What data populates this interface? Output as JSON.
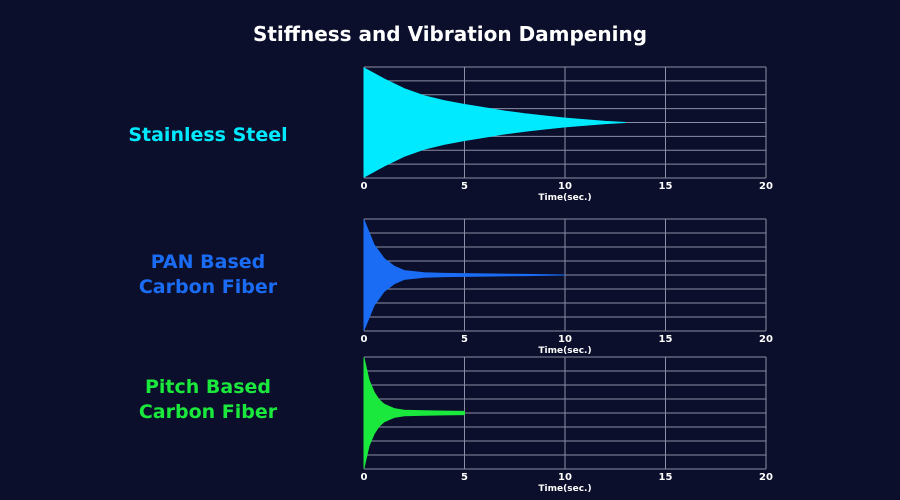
{
  "title": "Stiffness and Vibration Dampening",
  "colors": {
    "background": "#0c0f2b",
    "grid": "#8a8fa6",
    "tick_text": "#ffffff"
  },
  "chart_data": [
    {
      "type": "area",
      "material_lines": [
        "Stainless Steel"
      ],
      "color": "#00eaff",
      "xlabel": "Time(sec.)",
      "xlim": [
        0,
        20
      ],
      "xticks": [
        "0",
        "5",
        "10",
        "15",
        "20"
      ],
      "envelope": {
        "x": [
          0,
          1,
          2,
          3,
          4,
          5,
          6,
          7,
          8,
          9,
          10,
          11,
          12,
          13
        ],
        "amplitude": [
          1.0,
          0.8,
          0.62,
          0.49,
          0.4,
          0.33,
          0.27,
          0.21,
          0.16,
          0.12,
          0.08,
          0.05,
          0.02,
          0.0
        ]
      }
    },
    {
      "type": "area",
      "material_lines": [
        "PAN Based",
        "Carbon Fiber"
      ],
      "color": "#1a6cf5",
      "xlabel": "Time(sec.)",
      "xlim": [
        0,
        20
      ],
      "xticks": [
        "0",
        "5",
        "10",
        "15",
        "20"
      ],
      "envelope": {
        "x": [
          0,
          0.5,
          1,
          1.5,
          2,
          3,
          4,
          5,
          6,
          8,
          10
        ],
        "amplitude": [
          1.0,
          0.55,
          0.3,
          0.16,
          0.08,
          0.04,
          0.03,
          0.025,
          0.02,
          0.01,
          0.0
        ]
      }
    },
    {
      "type": "area",
      "material_lines": [
        "Pitch Based",
        "Carbon Fiber"
      ],
      "color": "#1ae83c",
      "xlabel": "Time(sec.)",
      "xlim": [
        0,
        20
      ],
      "xticks": [
        "0",
        "5",
        "10",
        "15",
        "20"
      ],
      "envelope": {
        "x": [
          0,
          0.25,
          0.5,
          0.75,
          1,
          1.5,
          2,
          3,
          4,
          5
        ],
        "amplitude": [
          1.0,
          0.6,
          0.38,
          0.24,
          0.16,
          0.08,
          0.05,
          0.04,
          0.035,
          0.03
        ]
      }
    }
  ]
}
